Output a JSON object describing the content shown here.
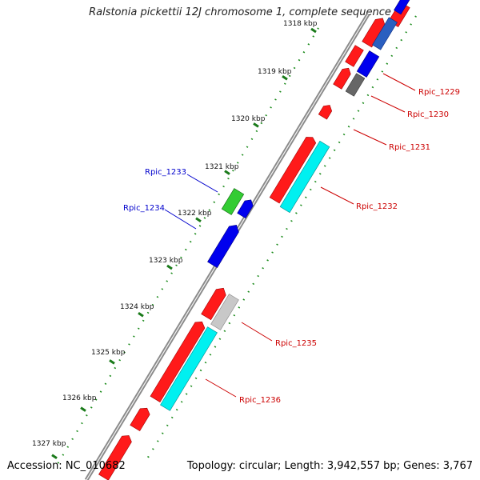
{
  "title": "Ralstonia pickettii 12J chromosome 1, complete sequence",
  "footer": {
    "accession": "Accession: NC_010682",
    "summary": "Topology: circular; Length: 3,942,557 bp; Genes: 3,767"
  },
  "ticks": [
    "1318 kbp",
    "1319 kbp",
    "1320 kbp",
    "1321 kbp",
    "1322 kbp",
    "1323 kbp",
    "1324 kbp",
    "1325 kbp",
    "1326 kbp",
    "1327 kbp"
  ],
  "genes": [
    {
      "name": "Rpic_1229",
      "color": "#cc0000"
    },
    {
      "name": "Rpic_1230",
      "color": "#cc0000"
    },
    {
      "name": "Rpic_1231",
      "color": "#cc0000"
    },
    {
      "name": "Rpic_1232",
      "color": "#cc0000"
    },
    {
      "name": "Rpic_1233",
      "color": "#0000cc"
    },
    {
      "name": "Rpic_1234",
      "color": "#0000cc"
    },
    {
      "name": "Rpic_1235",
      "color": "#cc0000"
    },
    {
      "name": "Rpic_1236",
      "color": "#cc0000"
    }
  ],
  "colors": {
    "forward_cds": "#ff0000",
    "reverse_cds": "#0000ff",
    "rna": "#00ffff",
    "misc": "#2ecc2e",
    "tick": "#1a7a1a",
    "backbone": "#888888"
  }
}
